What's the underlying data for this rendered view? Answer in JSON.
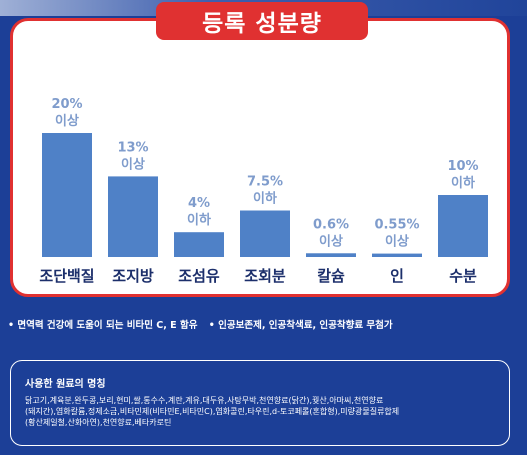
{
  "title": "등록 성분량",
  "colors": {
    "background": "#1c3f97",
    "accent_red": "#e03131",
    "bar": "#4f81c7",
    "value_label": "#7f9ccc",
    "category_label": "#1c2f6b"
  },
  "chart_data": {
    "type": "bar",
    "categories": [
      "조단백질",
      "조지방",
      "조섬유",
      "조회분",
      "칼슘",
      "인",
      "수분"
    ],
    "values": [
      20,
      13,
      4,
      7.5,
      0.6,
      0.55,
      10
    ],
    "value_labels": [
      [
        "20%",
        "이상"
      ],
      [
        "13%",
        "이상"
      ],
      [
        "4%",
        "이하"
      ],
      [
        "7.5%",
        "이하"
      ],
      [
        "0.6%",
        "이상"
      ],
      [
        "0.55%",
        "이상"
      ],
      [
        "10%",
        "이하"
      ]
    ],
    "ylim": [
      0,
      20
    ],
    "grid": false,
    "legend": "none"
  },
  "bullets": [
    "• 면역력 건강에 도움이 되는 비타민 C, E 함유",
    "• 인공보존제, 인공착색료, 인공착향료 무첨가"
  ],
  "ingredients": {
    "title": "사용한 원료의 명칭",
    "lines": [
      "닭고기,계육분,완두콩,보리,현미,쌀,통수수,계란,계유,대두유,사탕무박,천연향료(닭간),꿪산,아마씨,천연향료",
      "(돼지간),염화칼륨,정제소금,비타민제(비타민E,비타민C),염화콜린,타우린,d-토코페롤(혼합형),미량광물질류합제",
      "(황산제일철,산화아연),천연향료,베타카로틴"
    ]
  }
}
